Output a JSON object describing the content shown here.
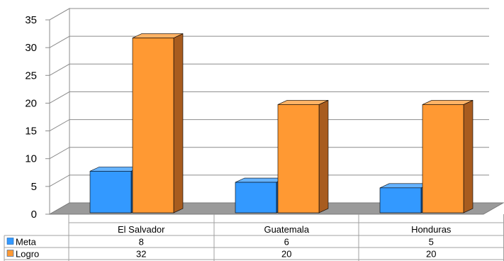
{
  "chart_data": {
    "type": "bar",
    "style": "3d-clustered-column-with-data-table",
    "categories": [
      "El Salvador",
      "Guatemala",
      "Honduras"
    ],
    "series": [
      {
        "name": "Meta",
        "values": [
          8,
          6,
          5
        ],
        "color": "#3399ff",
        "side_color": "#1f5fa8",
        "top_color": "#66b3ff"
      },
      {
        "name": "Logro",
        "values": [
          32,
          20,
          20
        ],
        "color": "#ff9933",
        "side_color": "#a85c1f",
        "top_color": "#ffb366"
      }
    ],
    "ylim": [
      0,
      35
    ],
    "yticks": [
      0,
      5,
      10,
      15,
      20,
      25,
      30,
      35
    ],
    "grid": true,
    "legend": "data-table-left",
    "table": {
      "rows": [
        {
          "label": "Meta",
          "cells": [
            "8",
            "6",
            "5"
          ]
        },
        {
          "label": "Logro",
          "cells": [
            "32",
            "20",
            "20"
          ]
        }
      ]
    }
  }
}
